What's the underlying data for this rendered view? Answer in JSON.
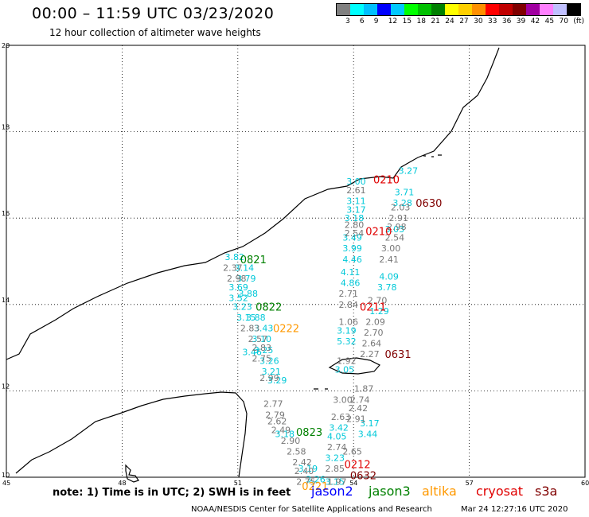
{
  "header": {
    "title": "00:00 – 11:59 UTC 03/23/2020",
    "subtitle": "12 hour collection of altimeter wave heights"
  },
  "legend": {
    "colors": [
      "#808080",
      "#00ffff",
      "#00c0ff",
      "#0000ff",
      "#00c8ff",
      "#00ff00",
      "#00c000",
      "#008000",
      "#ffff00",
      "#ffd000",
      "#ff9000",
      "#ff0000",
      "#c00000",
      "#800000",
      "#a000a0",
      "#ff80ff",
      "#c0c0ff",
      "#000000"
    ],
    "labels": [
      "3",
      "6",
      "9",
      "12",
      "15",
      "18",
      "21",
      "24",
      "27",
      "30",
      "33",
      "36",
      "39",
      "42",
      "45",
      "70",
      "(ft)"
    ]
  },
  "map": {
    "lat_labels": [
      "20",
      "18",
      "16",
      "14",
      "12",
      "10"
    ],
    "lon_labels": [
      "45",
      "48",
      "51",
      "54",
      "57",
      "60"
    ],
    "tracks": [
      {
        "color": "#00c8d8",
        "points": [
          {
            "v": "3.00",
            "lon": 54.0,
            "lat": 16.85
          },
          {
            "v": "3.11",
            "lon": 54.0,
            "lat": 16.4
          },
          {
            "v": "3.17",
            "lon": 54.0,
            "lat": 16.2
          },
          {
            "v": "3.18",
            "lon": 53.95,
            "lat": 16.0
          },
          {
            "v": "3.49",
            "lon": 53.9,
            "lat": 15.55
          },
          {
            "v": "3.99",
            "lon": 53.9,
            "lat": 15.3
          },
          {
            "v": "4.46",
            "lon": 53.9,
            "lat": 15.05
          },
          {
            "v": "4.11",
            "lon": 53.85,
            "lat": 14.75
          },
          {
            "v": "4.86",
            "lon": 53.85,
            "lat": 14.5
          },
          {
            "v": "3.19",
            "lon": 53.75,
            "lat": 13.4
          },
          {
            "v": "5.32",
            "lon": 53.75,
            "lat": 13.15
          },
          {
            "v": "3.05",
            "lon": 53.7,
            "lat": 12.5
          },
          {
            "v": "3.42",
            "lon": 53.55,
            "lat": 11.15
          },
          {
            "v": "4.05",
            "lon": 53.5,
            "lat": 10.95
          },
          {
            "v": "3.23",
            "lon": 53.45,
            "lat": 10.45
          },
          {
            "v": "3.15",
            "lon": 53.45,
            "lat": 9.9
          }
        ]
      },
      {
        "color": "#777777",
        "points": [
          {
            "v": "2.61",
            "lon": 54.0,
            "lat": 16.65
          },
          {
            "v": "2.80",
            "lon": 53.95,
            "lat": 15.85
          },
          {
            "v": "2.54",
            "lon": 53.95,
            "lat": 15.65
          },
          {
            "v": "2.71",
            "lon": 53.8,
            "lat": 14.25
          },
          {
            "v": "2.84",
            "lon": 53.8,
            "lat": 14.0
          },
          {
            "v": "1.06",
            "lon": 53.8,
            "lat": 13.6
          },
          {
            "v": "1.92",
            "lon": 53.75,
            "lat": 12.7
          },
          {
            "v": "3.00",
            "lon": 53.65,
            "lat": 11.8
          },
          {
            "v": "2.63",
            "lon": 53.6,
            "lat": 11.4
          },
          {
            "v": "2.74",
            "lon": 53.5,
            "lat": 10.7
          },
          {
            "v": "2.85",
            "lon": 53.45,
            "lat": 10.2
          },
          {
            "v": "1.97",
            "lon": 53.5,
            "lat": 9.9
          }
        ]
      },
      {
        "color": "#00c8d8",
        "points": [
          {
            "v": "3.27",
            "lon": 55.35,
            "lat": 17.1
          },
          {
            "v": "3.71",
            "lon": 55.25,
            "lat": 16.6
          },
          {
            "v": "3.28",
            "lon": 55.2,
            "lat": 16.35
          },
          {
            "v": "3.03",
            "lon": 55.0,
            "lat": 15.75
          },
          {
            "v": "4.09",
            "lon": 54.85,
            "lat": 14.65
          },
          {
            "v": "3.78",
            "lon": 54.8,
            "lat": 14.4
          },
          {
            "v": "1.29",
            "lon": 54.6,
            "lat": 13.85
          },
          {
            "v": "3.17",
            "lon": 54.35,
            "lat": 11.25
          },
          {
            "v": "3.44",
            "lon": 54.3,
            "lat": 11.0
          }
        ]
      },
      {
        "color": "#777777",
        "points": [
          {
            "v": "2.03",
            "lon": 55.15,
            "lat": 16.25
          },
          {
            "v": "2.91",
            "lon": 55.1,
            "lat": 16.0
          },
          {
            "v": "2.98",
            "lon": 55.05,
            "lat": 15.8
          },
          {
            "v": "2.54",
            "lon": 55.0,
            "lat": 15.55
          },
          {
            "v": "3.00",
            "lon": 54.9,
            "lat": 15.3
          },
          {
            "v": "2.41",
            "lon": 54.85,
            "lat": 15.05
          },
          {
            "v": "2.70",
            "lon": 54.55,
            "lat": 14.1
          },
          {
            "v": "2.09",
            "lon": 54.5,
            "lat": 13.6
          },
          {
            "v": "2.70",
            "lon": 54.45,
            "lat": 13.35
          },
          {
            "v": "2.64",
            "lon": 54.4,
            "lat": 13.1
          },
          {
            "v": "2.27",
            "lon": 54.35,
            "lat": 12.85
          },
          {
            "v": "1.87",
            "lon": 54.2,
            "lat": 12.05
          },
          {
            "v": "2.74",
            "lon": 54.1,
            "lat": 11.8
          },
          {
            "v": "2.42",
            "lon": 54.05,
            "lat": 11.6
          },
          {
            "v": "2.91",
            "lon": 54.0,
            "lat": 11.35
          },
          {
            "v": "2.65",
            "lon": 53.9,
            "lat": 10.6
          }
        ]
      },
      {
        "color": "#00c8d8",
        "points": [
          {
            "v": "3.82",
            "lon": 50.85,
            "lat": 15.1
          },
          {
            "v": "3.14",
            "lon": 51.1,
            "lat": 14.85
          },
          {
            "v": "3.79",
            "lon": 51.15,
            "lat": 14.6
          },
          {
            "v": "3.69",
            "lon": 50.95,
            "lat": 14.4
          },
          {
            "v": "3.88",
            "lon": 51.2,
            "lat": 14.25
          },
          {
            "v": "3.52",
            "lon": 50.95,
            "lat": 14.15
          },
          {
            "v": "3.23",
            "lon": 51.05,
            "lat": 13.95
          },
          {
            "v": "3.15",
            "lon": 51.15,
            "lat": 13.7
          },
          {
            "v": "3.88",
            "lon": 51.4,
            "lat": 13.7
          },
          {
            "v": "3.43",
            "lon": 51.6,
            "lat": 13.45
          },
          {
            "v": "3.10",
            "lon": 51.55,
            "lat": 13.2
          },
          {
            "v": "3.46",
            "lon": 51.3,
            "lat": 12.9
          },
          {
            "v": "3.25",
            "lon": 51.6,
            "lat": 12.95
          },
          {
            "v": "3.26",
            "lon": 51.75,
            "lat": 12.7
          },
          {
            "v": "3.21",
            "lon": 51.8,
            "lat": 12.45
          },
          {
            "v": "3.29",
            "lon": 51.95,
            "lat": 12.25
          },
          {
            "v": "3.18",
            "lon": 52.15,
            "lat": 11.0
          },
          {
            "v": "3.19",
            "lon": 52.75,
            "lat": 10.2
          },
          {
            "v": "3.26",
            "lon": 52.95,
            "lat": 9.95
          }
        ]
      },
      {
        "color": "#777777",
        "points": [
          {
            "v": "2.37",
            "lon": 50.8,
            "lat": 14.85
          },
          {
            "v": "2.98",
            "lon": 50.9,
            "lat": 14.6
          },
          {
            "v": "2.83",
            "lon": 51.25,
            "lat": 13.45
          },
          {
            "v": "2.57",
            "lon": 51.45,
            "lat": 13.2
          },
          {
            "v": "2.83",
            "lon": 51.55,
            "lat": 13.0
          },
          {
            "v": "2.75",
            "lon": 51.55,
            "lat": 12.75
          },
          {
            "v": "2.99",
            "lon": 51.75,
            "lat": 12.3
          },
          {
            "v": "2.77",
            "lon": 51.85,
            "lat": 11.7
          },
          {
            "v": "2.79",
            "lon": 51.9,
            "lat": 11.45
          },
          {
            "v": "2.62",
            "lon": 51.95,
            "lat": 11.3
          },
          {
            "v": "2.49",
            "lon": 52.05,
            "lat": 11.1
          },
          {
            "v": "2.90",
            "lon": 52.3,
            "lat": 10.85
          },
          {
            "v": "2.58",
            "lon": 52.45,
            "lat": 10.6
          },
          {
            "v": "2.42",
            "lon": 52.6,
            "lat": 10.35
          },
          {
            "v": "2.40",
            "lon": 52.65,
            "lat": 10.15
          },
          {
            "v": "2.75",
            "lon": 52.7,
            "lat": 9.9
          }
        ]
      }
    ],
    "time_labels": [
      {
        "v": "0210",
        "color": "#e00000",
        "lon": 54.8,
        "lat": 16.9
      },
      {
        "v": "0630",
        "color": "#800000",
        "lon": 55.9,
        "lat": 16.35
      },
      {
        "v": "0210",
        "color": "#e00000",
        "lon": 54.6,
        "lat": 15.7
      },
      {
        "v": "0821",
        "color": "#008000",
        "lon": 51.35,
        "lat": 15.05
      },
      {
        "v": "0822",
        "color": "#008000",
        "lon": 51.75,
        "lat": 13.95
      },
      {
        "v": "0222",
        "color": "#ff9900",
        "lon": 52.2,
        "lat": 13.45
      },
      {
        "v": "0211",
        "color": "#e00000",
        "lon": 54.45,
        "lat": 13.95
      },
      {
        "v": "0631",
        "color": "#800000",
        "lon": 55.1,
        "lat": 12.85
      },
      {
        "v": "0823",
        "color": "#008000",
        "lon": 52.8,
        "lat": 11.05
      },
      {
        "v": "0212",
        "color": "#e00000",
        "lon": 54.05,
        "lat": 10.3
      },
      {
        "v": "0632",
        "color": "#800000",
        "lon": 54.2,
        "lat": 10.05
      },
      {
        "v": "0221",
        "color": "#ff9900",
        "lon": 52.95,
        "lat": 9.8
      }
    ]
  },
  "footer": {
    "note": "note: 1) Time is in UTC; 2) SWH is in feet",
    "satellites": [
      {
        "name": "jason2",
        "color": "#0000ff"
      },
      {
        "name": "jason3",
        "color": "#008000"
      },
      {
        "name": "altika",
        "color": "#ff9900"
      },
      {
        "name": "cryosat",
        "color": "#e00000"
      },
      {
        "name": "s3a",
        "color": "#800000"
      }
    ],
    "credit": "NOAA/NESDIS Center for Satellite Applications and Research",
    "timestamp": "Mar 24 12:27:16 UTC 2020"
  }
}
